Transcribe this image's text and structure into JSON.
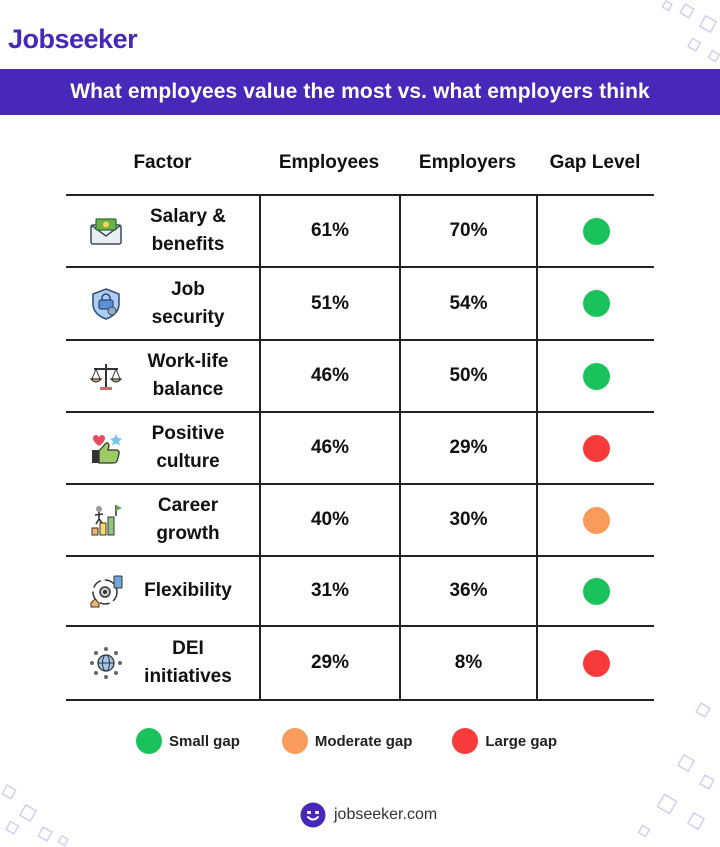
{
  "brand": {
    "logo": "Jobseeker",
    "color": "#4828b8"
  },
  "banner": {
    "title": "What employees value the most vs. what employers think"
  },
  "colors": {
    "small": "#19c25a",
    "moderate": "#f99b5a",
    "large": "#f73a3a"
  },
  "chart_data": {
    "type": "table",
    "columns": [
      "Factor",
      "Employees",
      "Employers",
      "Gap Level"
    ],
    "rows": [
      {
        "factor": "Salary & benefits",
        "factor_l1": "Salary &",
        "factor_l2": "benefits",
        "employees": "61%",
        "employers": "70%",
        "gap": "small",
        "icon": "money-envelope-icon"
      },
      {
        "factor": "Job security",
        "factor_l1": "Job",
        "factor_l2": "security",
        "employees": "51%",
        "employers": "54%",
        "gap": "small",
        "icon": "shield-icon"
      },
      {
        "factor": "Work-life balance",
        "factor_l1": "Work-life",
        "factor_l2": "balance",
        "employees": "46%",
        "employers": "50%",
        "gap": "small",
        "icon": "balance-scale-icon"
      },
      {
        "factor": "Positive culture",
        "factor_l1": "Positive",
        "factor_l2": "culture",
        "employees": "46%",
        "employers": "29%",
        "gap": "large",
        "icon": "thumbs-up-icon"
      },
      {
        "factor": "Career growth",
        "factor_l1": "Career",
        "factor_l2": "growth",
        "employees": "40%",
        "employers": "30%",
        "gap": "moderate",
        "icon": "career-growth-icon"
      },
      {
        "factor": "Flexibility",
        "factor_l1": "Flexibility",
        "factor_l2": "",
        "employees": "31%",
        "employers": "36%",
        "gap": "small",
        "icon": "flexibility-icon"
      },
      {
        "factor": "DEI initiatives",
        "factor_l1": "DEI",
        "factor_l2": "initiatives",
        "employees": "29%",
        "employers": "8%",
        "gap": "large",
        "icon": "globe-people-icon"
      }
    ],
    "legend": [
      {
        "key": "small",
        "label": "Small gap"
      },
      {
        "key": "moderate",
        "label": "Moderate gap"
      },
      {
        "key": "large",
        "label": "Large gap"
      }
    ]
  },
  "footer": {
    "url": "jobseeker.com",
    "icon": "jobseeker-face-icon"
  }
}
